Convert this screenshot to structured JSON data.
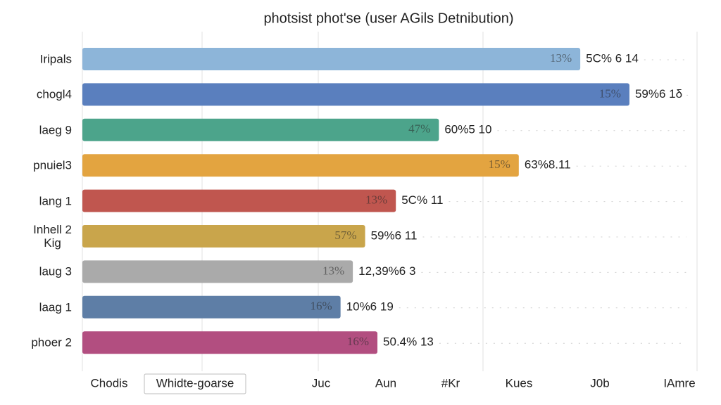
{
  "chart_data": {
    "type": "bar",
    "orientation": "horizontal",
    "title": "photsist phot'se (user AGils Detnibution)",
    "categories": [
      "Iripals",
      "chogl4",
      "laeg 9",
      "pnuiel3",
      "lang 1",
      "Inhell 2\nKig",
      "laug 3",
      "laag 1",
      "phoer 2"
    ],
    "values": [
      81,
      89,
      58,
      71,
      51,
      46,
      44,
      42,
      48
    ],
    "colors": [
      "#8db5d9",
      "#5a7fbe",
      "#4ca48b",
      "#e3a440",
      "#c0564f",
      "#c9a54b",
      "#aaaaaa",
      "#5e7ea6",
      "#b24e80"
    ],
    "inner_labels": [
      "13%",
      "15%",
      "47%",
      "15%",
      "13%",
      "57%",
      "13%",
      "16%",
      "16%"
    ],
    "outer_labels": [
      "5C% 6 14",
      "59%6 1δ",
      "60%5 10",
      "63%8.11",
      "5C% 11",
      "59%6 11",
      "12,39%6 3",
      "10%6 19",
      "50.4% 13"
    ],
    "xlim": [
      0,
      100
    ],
    "footer_labels": [
      "Chodis",
      "Whidte-goarse",
      "Juc",
      "Aun",
      "#Kr",
      "Kues",
      "J0b",
      "IAmre"
    ]
  }
}
